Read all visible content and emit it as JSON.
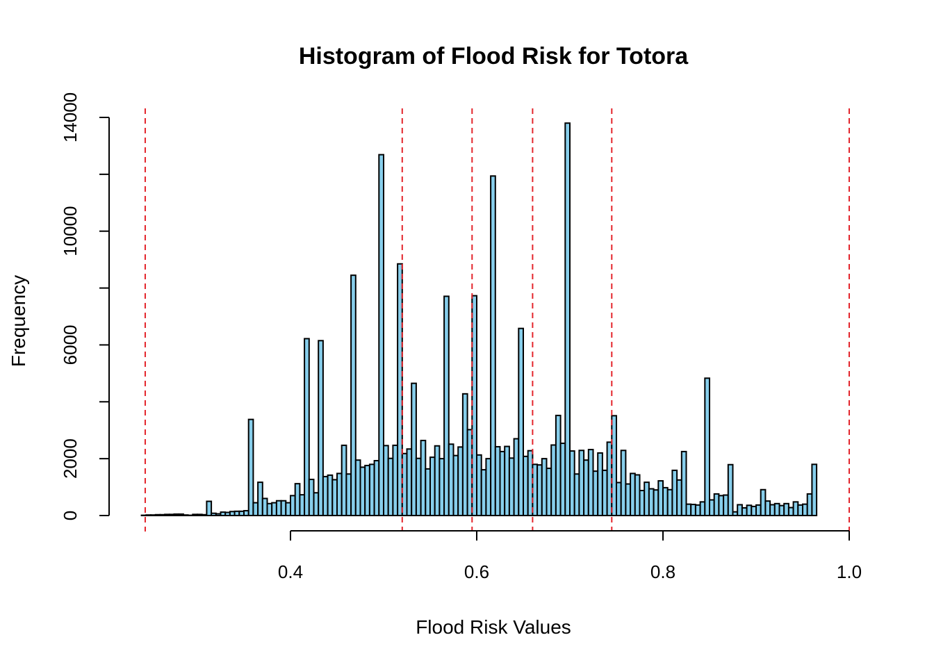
{
  "chart_data": {
    "type": "bar",
    "title": "Histogram of Flood Risk for Totora",
    "xlabel": "Flood Risk Values",
    "ylabel": "Frequency",
    "xlim": [
      0.2,
      1.0
    ],
    "ylim": [
      0,
      14000
    ],
    "x_ticks": [
      0.4,
      0.6,
      0.8,
      1.0
    ],
    "x_tick_labels": [
      "0.4",
      "0.6",
      "0.8",
      "1.0"
    ],
    "y_ticks": [
      0,
      2000,
      6000,
      10000,
      14000
    ],
    "y_tick_labels": [
      "0",
      "2000",
      "6000",
      "10000",
      "14000"
    ],
    "bin_width": 0.005,
    "bin_start": 0.2,
    "frequencies": [
      0,
      0,
      0,
      0,
      0,
      0,
      0,
      0,
      10,
      20,
      20,
      30,
      30,
      40,
      40,
      50,
      50,
      20,
      10,
      40,
      40,
      30,
      500,
      80,
      60,
      120,
      110,
      140,
      150,
      150,
      170,
      3380,
      450,
      1170,
      600,
      420,
      450,
      520,
      520,
      450,
      700,
      1120,
      730,
      6220,
      1270,
      800,
      6150,
      1370,
      1420,
      1260,
      1480,
      2470,
      1460,
      8450,
      1950,
      1700,
      1760,
      1800,
      1930,
      12690,
      2460,
      2010,
      2470,
      8850,
      2180,
      2340,
      4650,
      2010,
      2640,
      1640,
      2050,
      2450,
      2000,
      7710,
      2510,
      2110,
      2410,
      4280,
      3020,
      7730,
      2130,
      1610,
      2000,
      11940,
      2420,
      2250,
      2430,
      2020,
      2700,
      6580,
      2080,
      2280,
      1800,
      1780,
      2000,
      1660,
      2480,
      3520,
      2540,
      13800,
      2270,
      1460,
      2290,
      1950,
      2320,
      1560,
      2200,
      1590,
      2580,
      3510,
      1160,
      2290,
      1110,
      1480,
      1430,
      880,
      1170,
      940,
      900,
      1220,
      980,
      910,
      1590,
      1250,
      2250,
      400,
      390,
      370,
      480,
      4830,
      550,
      760,
      700,
      720,
      1790,
      130,
      380,
      270,
      360,
      320,
      370,
      910,
      510,
      380,
      420,
      350,
      420,
      280,
      480,
      370,
      400,
      760,
      1800
    ]
  },
  "reference_lines": [
    0.244,
    0.52,
    0.595,
    0.66,
    0.745,
    1.0
  ],
  "colors": {
    "bar_fill": "#87ceeb",
    "bar_stroke": "#000000",
    "reference_line": "#e3242b"
  }
}
